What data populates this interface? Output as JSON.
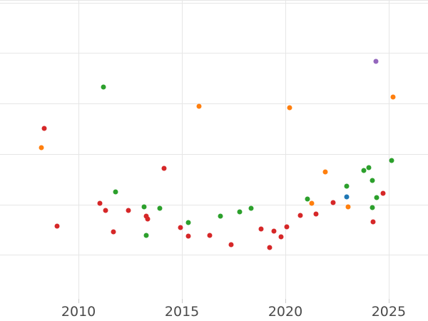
{
  "chart_data": {
    "type": "scatter",
    "title": "",
    "xlabel": "",
    "ylabel": "",
    "xlim": [
      2006.2,
      2026.9
    ],
    "ylim": [
      -0.87,
      5.05
    ],
    "xticks": [
      2010,
      2015,
      2020,
      2025
    ],
    "xtick_labels": [
      "2010",
      "2015",
      "2020",
      "2025"
    ],
    "ygridline_values": [
      0,
      1,
      2,
      3,
      4,
      5,
      5.05
    ],
    "ytick_labels_visible": false,
    "grid": true,
    "legend_position": "none",
    "marker_diameter_px": 7,
    "series": [
      {
        "name": "red",
        "color": "#d62728",
        "points": [
          [
            2008.34,
            2.51
          ],
          [
            2014.15,
            1.71
          ],
          [
            2011.04,
            1.02
          ],
          [
            2011.31,
            0.88
          ],
          [
            2012.42,
            0.88
          ],
          [
            2013.28,
            0.77
          ],
          [
            2013.35,
            0.71
          ],
          [
            2008.96,
            0.57
          ],
          [
            2011.69,
            0.46
          ],
          [
            2014.91,
            0.54
          ],
          [
            2015.32,
            0.37
          ],
          [
            2016.33,
            0.39
          ],
          [
            2024.73,
            1.22
          ],
          [
            2022.31,
            1.04
          ],
          [
            2020.72,
            0.78
          ],
          [
            2021.48,
            0.81
          ],
          [
            2024.24,
            0.65
          ],
          [
            2018.81,
            0.51
          ],
          [
            2019.44,
            0.47
          ],
          [
            2020.06,
            0.56
          ],
          [
            2019.78,
            0.36
          ],
          [
            2017.36,
            0.2
          ],
          [
            2019.23,
            0.15
          ]
        ]
      },
      {
        "name": "green",
        "color": "#2ca02c",
        "points": [
          [
            2011.21,
            3.33
          ],
          [
            2011.8,
            1.25
          ],
          [
            2013.18,
            0.96
          ],
          [
            2013.91,
            0.92
          ],
          [
            2013.28,
            0.39
          ],
          [
            2015.29,
            0.64
          ],
          [
            2023.79,
            1.68
          ],
          [
            2024.03,
            1.73
          ],
          [
            2025.14,
            1.87
          ],
          [
            2024.21,
            1.47
          ],
          [
            2022.96,
            1.36
          ],
          [
            2024.41,
            1.13
          ],
          [
            2021.06,
            1.11
          ],
          [
            2024.21,
            0.94
          ],
          [
            2016.85,
            0.77
          ],
          [
            2017.78,
            0.85
          ],
          [
            2018.33,
            0.92
          ]
        ]
      },
      {
        "name": "orange",
        "color": "#ff7f0e",
        "points": [
          [
            2015.84,
            2.94
          ],
          [
            2008.2,
            2.13
          ],
          [
            2025.21,
            3.13
          ],
          [
            2020.2,
            2.92
          ],
          [
            2021.93,
            1.65
          ],
          [
            2021.27,
            1.02
          ],
          [
            2023.03,
            0.96
          ]
        ]
      },
      {
        "name": "blue",
        "color": "#1f77b4",
        "points": [
          [
            2022.96,
            1.15
          ]
        ]
      },
      {
        "name": "purple",
        "color": "#9467bd",
        "points": [
          [
            2024.38,
            3.84
          ]
        ]
      }
    ]
  },
  "styles": {
    "background": "#ffffff",
    "grid_color": "#e6e6e6",
    "tick_mark_color": "#cccccc",
    "tick_label_color": "#4a4a4a"
  }
}
